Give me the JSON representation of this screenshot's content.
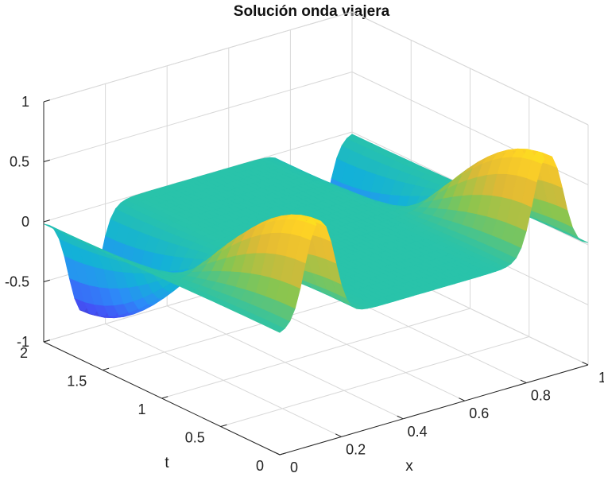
{
  "chart_data": {
    "type": "surface",
    "title": "Solución onda viajera",
    "xlabel": "x",
    "ylabel": "t",
    "zlabel": "",
    "xlim": [
      0,
      1
    ],
    "ylim": [
      0,
      2
    ],
    "zlim": [
      -1,
      1
    ],
    "x_ticks": [
      0,
      0.2,
      0.4,
      0.6,
      0.8,
      1
    ],
    "x_tick_labels": [
      "0",
      "0.2",
      "0.4",
      "0.6",
      "0.8",
      "1"
    ],
    "y_ticks": [
      0,
      0.5,
      1,
      1.5,
      2
    ],
    "y_tick_labels": [
      "0",
      "0.5",
      "1",
      "1.5",
      "2"
    ],
    "z_ticks": [
      -1,
      -0.5,
      0,
      0.5,
      1
    ],
    "z_tick_labels": [
      "-1",
      "-0.5",
      "0",
      "0.5",
      "1"
    ],
    "grid": true,
    "colormap": "parula",
    "colormap_stops": [
      "#3e26a8",
      "#4353f6",
      "#2c8cf8",
      "#13b1d8",
      "#29c3aa",
      "#8ac54f",
      "#e0b935",
      "#fdd026",
      "#f9fb14"
    ],
    "surface": {
      "description_of_peaks": "two pulses travelling along x as t increases",
      "x": [
        0,
        0.05,
        0.1,
        0.15,
        0.2,
        0.25,
        0.3,
        0.35,
        0.4,
        0.45,
        0.5,
        0.55,
        0.6,
        0.65,
        0.7,
        0.75,
        0.8,
        0.85,
        0.9,
        0.95,
        1
      ],
      "t_boundary_front_left": {
        "t": 2,
        "x_peak": 0.12,
        "z_min": -1
      },
      "t_boundary_front_right": {
        "t": 2,
        "x_peak": 0.88,
        "z_min": -1
      },
      "t_boundary_back_left": {
        "t": 0,
        "x_peak": 0.12,
        "z_max": 1
      },
      "t_boundary_back_right": {
        "t": 0,
        "x_peak": 0.88,
        "z_max": 1
      }
    }
  }
}
